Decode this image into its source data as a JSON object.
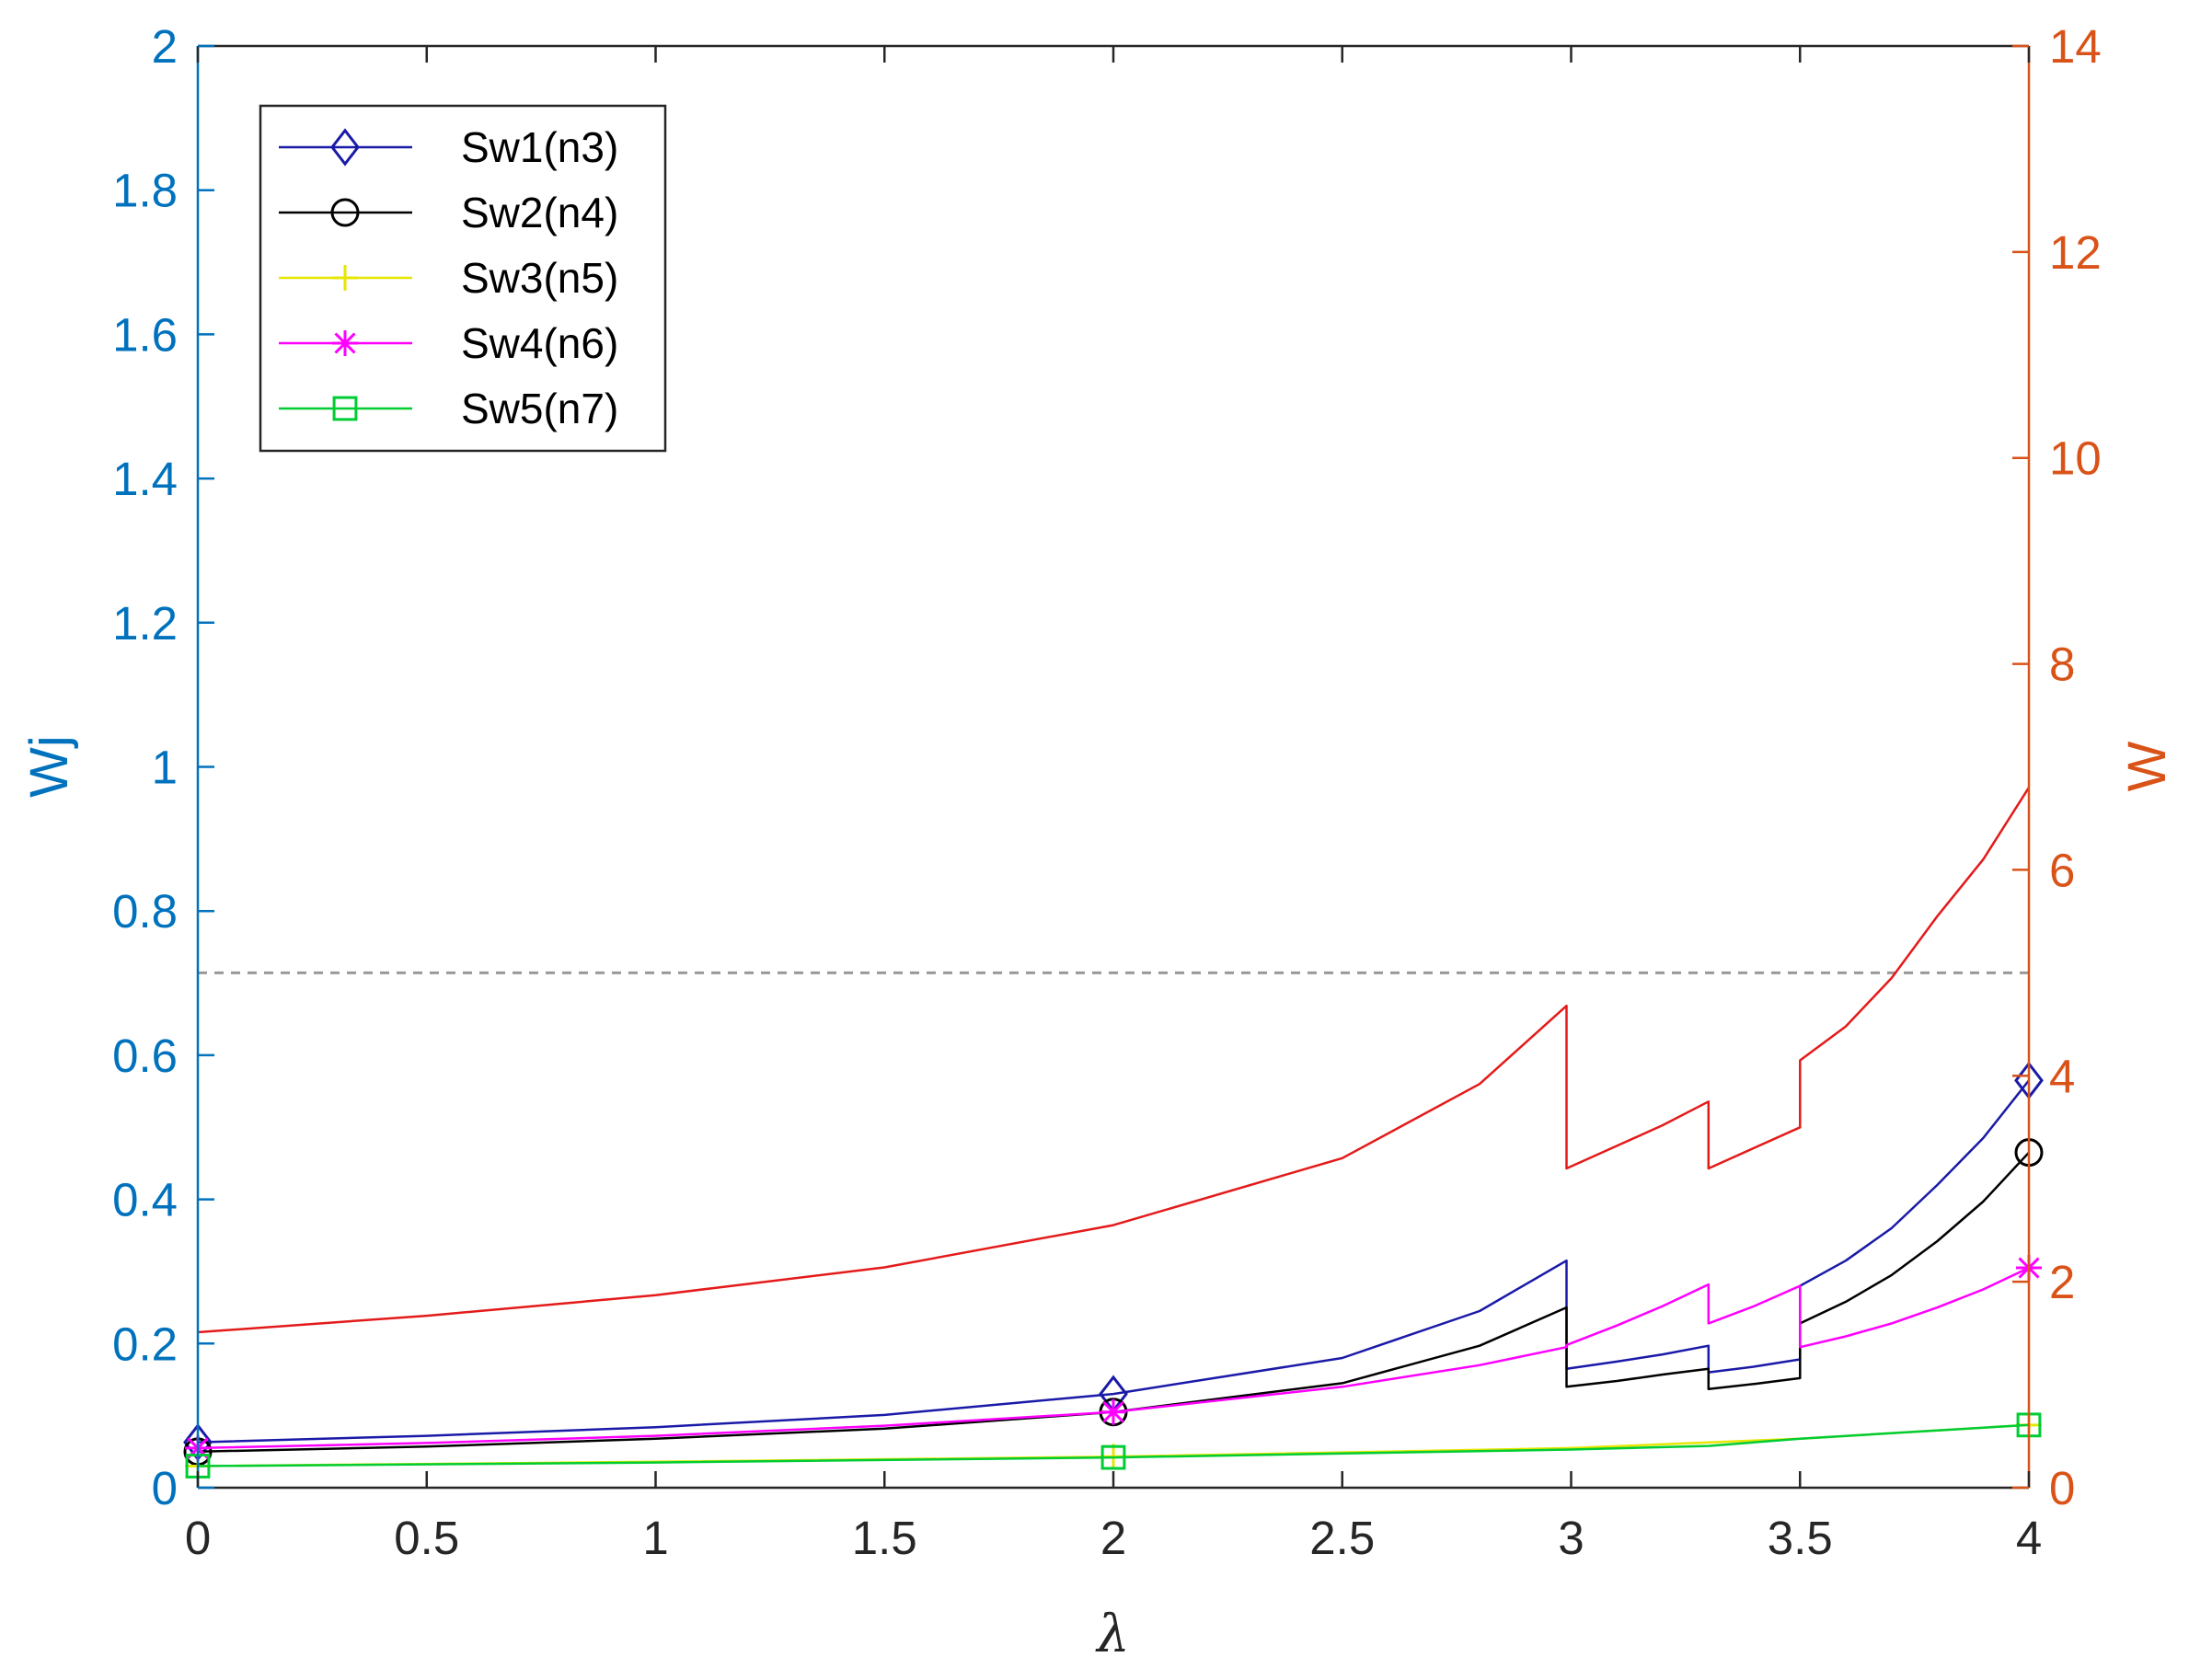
{
  "chart_data": {
    "type": "line",
    "title": "",
    "xlabel": "λ",
    "ylabel_left": "Wj",
    "ylabel_right": "W",
    "xlim": [
      0,
      4
    ],
    "ylim_left": [
      0,
      2
    ],
    "ylim_right": [
      0,
      14
    ],
    "x_ticks": [
      "0",
      "0.5",
      "1",
      "1.5",
      "2",
      "2.5",
      "3",
      "3.5",
      "4"
    ],
    "y_left_ticks": [
      "0",
      "0.2",
      "0.4",
      "0.6",
      "0.8",
      "1",
      "1.2",
      "1.4",
      "1.6",
      "1.8",
      "2"
    ],
    "y_right_ticks": [
      "0",
      "2",
      "4",
      "6",
      "8",
      "10",
      "12",
      "14"
    ],
    "grid": false,
    "legend_position": "top-left",
    "colors": {
      "left_axis": "#0072BD",
      "right_axis": "#D95319",
      "reference_line": "#999999"
    },
    "reference_line": {
      "axis": "right",
      "y": 5
    },
    "series": [
      {
        "name": "Sw1(n3)",
        "axis": "left",
        "color": "#1a1aa8",
        "marker": "diamond",
        "marker_x": [
          0,
          2,
          4
        ],
        "segments": [
          {
            "x": [
              0,
              0.5,
              1,
              1.5,
              2,
              2.5,
              2.8,
              2.99
            ],
            "y": [
              0.063,
              0.072,
              0.084,
              0.101,
              0.13,
              0.18,
              0.245,
              0.315
            ]
          },
          {
            "x": [
              2.99,
              3.1,
              3.2,
              3.3
            ],
            "y": [
              0.165,
              0.175,
              0.185,
              0.197
            ]
          },
          {
            "x": [
              3.3,
              3.4,
              3.5
            ],
            "y": [
              0.16,
              0.168,
              0.178
            ]
          },
          {
            "x": [
              3.5,
              3.6,
              3.7,
              3.8,
              3.9,
              4.0
            ],
            "y": [
              0.28,
              0.315,
              0.36,
              0.42,
              0.485,
              0.565
            ]
          }
        ]
      },
      {
        "name": "Sw2(n4)",
        "axis": "left",
        "color": "#000000",
        "marker": "circle",
        "marker_x": [
          0,
          2,
          4
        ],
        "segments": [
          {
            "x": [
              0,
              0.5,
              1,
              1.5,
              2,
              2.5,
              2.8,
              2.99
            ],
            "y": [
              0.05,
              0.057,
              0.068,
              0.082,
              0.105,
              0.145,
              0.197,
              0.25
            ]
          },
          {
            "x": [
              2.99,
              3.1,
              3.2,
              3.3
            ],
            "y": [
              0.14,
              0.148,
              0.157,
              0.165
            ]
          },
          {
            "x": [
              3.3,
              3.4,
              3.5
            ],
            "y": [
              0.137,
              0.144,
              0.152
            ]
          },
          {
            "x": [
              3.5,
              3.6,
              3.7,
              3.8,
              3.9,
              4.0
            ],
            "y": [
              0.228,
              0.258,
              0.295,
              0.342,
              0.397,
              0.465
            ]
          }
        ]
      },
      {
        "name": "Sw3(n5)",
        "axis": "left",
        "color": "#e6e600",
        "marker": "plus",
        "marker_x": [
          0,
          2,
          4
        ],
        "segments": [
          {
            "x": [
              0,
              1,
              2,
              3,
              3.5,
              4.0
            ],
            "y": [
              0.03,
              0.036,
              0.043,
              0.055,
              0.068,
              0.087
            ]
          }
        ]
      },
      {
        "name": "Sw4(n6)",
        "axis": "left",
        "color": "#ff00ff",
        "marker": "asterisk",
        "marker_x": [
          0,
          2,
          4
        ],
        "segments": [
          {
            "x": [
              0,
              0.5,
              1,
              1.5,
              2,
              2.5,
              2.8,
              2.99
            ],
            "y": [
              0.055,
              0.062,
              0.072,
              0.086,
              0.105,
              0.14,
              0.17,
              0.195
            ]
          },
          {
            "x": [
              2.99,
              3.1,
              3.2,
              3.3
            ],
            "y": [
              0.198,
              0.225,
              0.252,
              0.282
            ]
          },
          {
            "x": [
              3.3,
              3.4,
              3.5
            ],
            "y": [
              0.228,
              0.252,
              0.28
            ]
          },
          {
            "x": [
              3.5,
              3.6,
              3.7,
              3.8,
              3.9,
              4.0
            ],
            "y": [
              0.195,
              0.21,
              0.228,
              0.25,
              0.275,
              0.305
            ]
          }
        ]
      },
      {
        "name": "Sw5(n7)",
        "axis": "left",
        "color": "#00cc33",
        "marker": "square",
        "marker_x": [
          0,
          2,
          4
        ],
        "segments": [
          {
            "x": [
              0,
              1,
              2,
              3,
              3.3,
              3.5,
              4.0
            ],
            "y": [
              0.03,
              0.035,
              0.042,
              0.053,
              0.058,
              0.068,
              0.087
            ]
          }
        ]
      },
      {
        "name": "",
        "axis": "right",
        "color": "#e41a1a",
        "marker": "none",
        "marker_x": [],
        "segments": [
          {
            "x": [
              0,
              0.5,
              1,
              1.5,
              2,
              2.5,
              2.8,
              2.99
            ],
            "y": [
              1.51,
              1.67,
              1.87,
              2.14,
              2.55,
              3.2,
              3.92,
              4.68
            ]
          },
          {
            "x": [
              2.99,
              3.1,
              3.2,
              3.3
            ],
            "y": [
              3.1,
              3.32,
              3.52,
              3.75
            ]
          },
          {
            "x": [
              3.3,
              3.4,
              3.5
            ],
            "y": [
              3.1,
              3.3,
              3.5
            ]
          },
          {
            "x": [
              3.5,
              3.6,
              3.7,
              3.8,
              3.9,
              4.0
            ],
            "y": [
              4.15,
              4.48,
              4.95,
              5.55,
              6.1,
              6.8
            ]
          }
        ]
      }
    ]
  }
}
